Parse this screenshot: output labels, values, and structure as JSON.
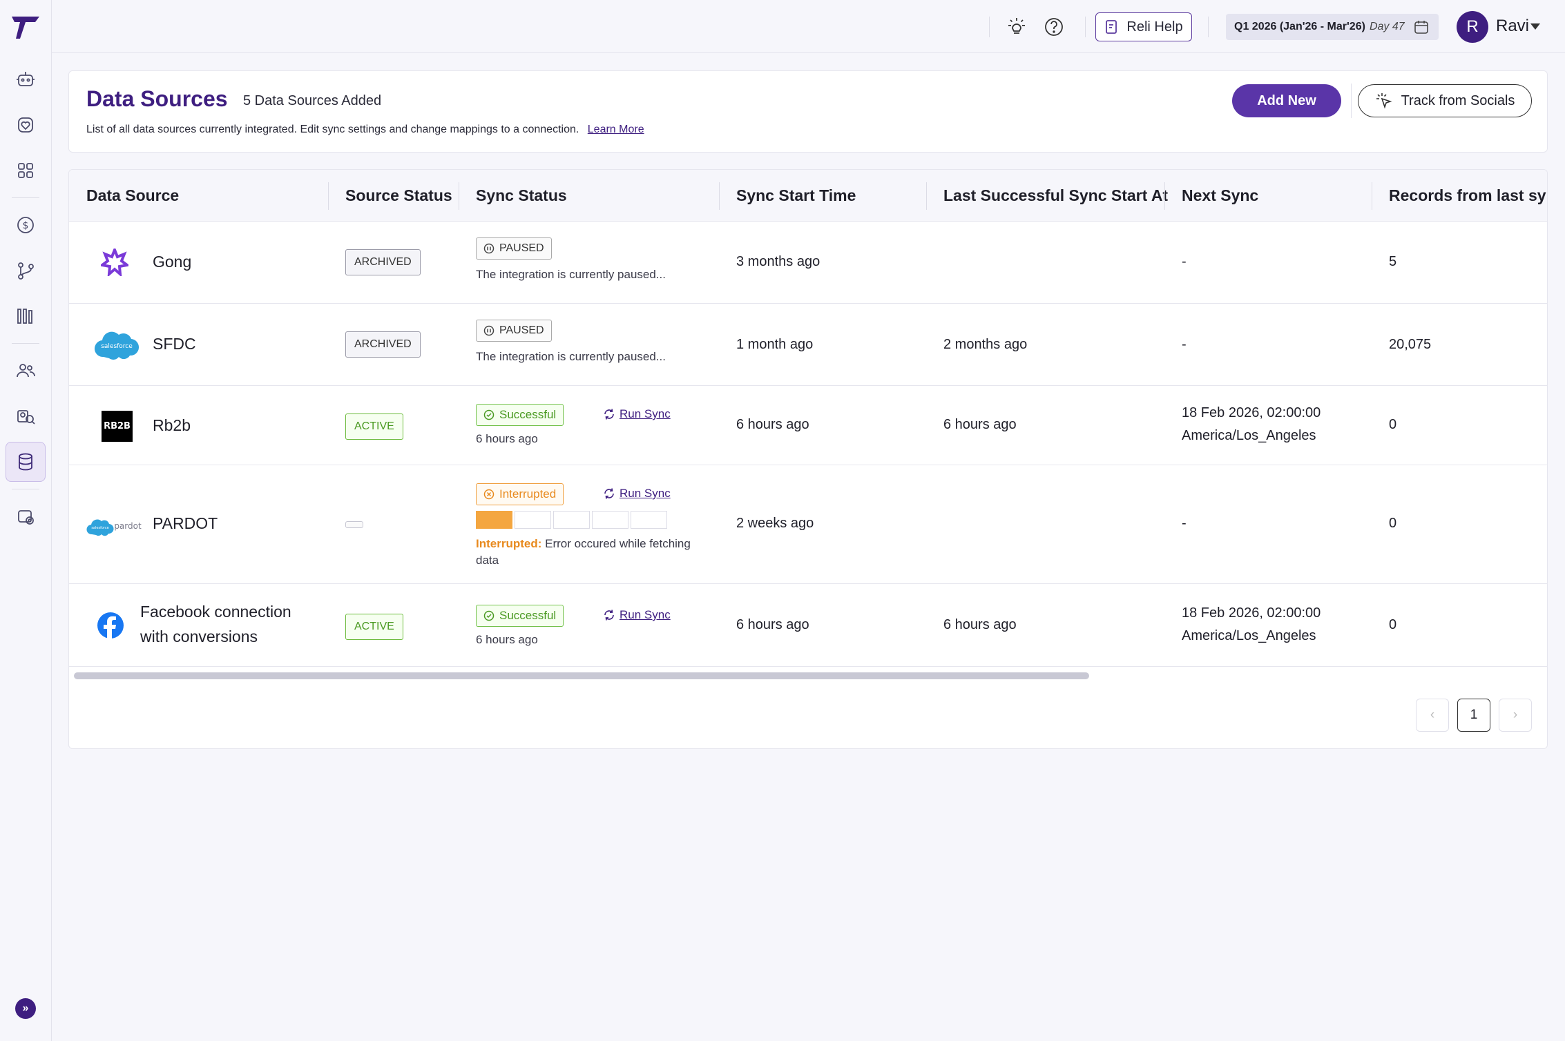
{
  "topbar": {
    "help_label": "Reli Help",
    "quarter_label": "Q1 2026 (Jan'26 - Mar'26)",
    "day_label": "Day 47",
    "avatar_initial": "R",
    "user_name": "Ravi"
  },
  "sidebar": {
    "items": [
      {
        "icon": "robot-icon"
      },
      {
        "icon": "heart-shield-icon"
      },
      {
        "icon": "grid-icon"
      },
      {
        "icon": "dollar-icon"
      },
      {
        "icon": "branch-icon"
      },
      {
        "icon": "bars-icon"
      },
      {
        "icon": "users-icon"
      },
      {
        "icon": "account-search-icon"
      },
      {
        "icon": "database-icon",
        "active": true
      },
      {
        "icon": "gear-puzzle-icon"
      }
    ]
  },
  "header": {
    "title": "Data Sources",
    "count_label": "5 Data Sources Added",
    "description": "List of all data sources currently integrated. Edit sync settings and change mappings to a connection.",
    "learn_more": "Learn More",
    "add_new": "Add New",
    "track_socials": "Track from Socials"
  },
  "table": {
    "columns": [
      "Data Source",
      "Source Status",
      "Sync Status",
      "Sync Start Time",
      "Last Successful Sync Start At",
      "Next Sync",
      "Records from last sync"
    ],
    "rows": [
      {
        "name": "Gong",
        "source_status": "ARCHIVED",
        "sync_status": "PAUSED",
        "sync_note": "The integration is currently paused...",
        "sync_start": "3 months ago",
        "last_success": "",
        "next_sync_line1": "-",
        "next_sync_line2": "",
        "records": "5"
      },
      {
        "name": "SFDC",
        "source_status": "ARCHIVED",
        "sync_status": "PAUSED",
        "sync_note": "The integration is currently paused...",
        "sync_start": "1 month ago",
        "last_success": "2 months ago",
        "next_sync_line1": "-",
        "next_sync_line2": "",
        "records": "20,075"
      },
      {
        "name": "Rb2b",
        "source_status": "ACTIVE",
        "sync_status": "Successful",
        "sync_note": "6 hours ago",
        "run_sync": "Run Sync",
        "sync_start": "6 hours ago",
        "last_success": "6 hours ago",
        "next_sync_line1": "18 Feb 2026, 02:00:00",
        "next_sync_line2": "America/Los_Angeles",
        "records": "0"
      },
      {
        "name": "PARDOT",
        "source_status": "",
        "sync_status": "Interrupted",
        "run_sync": "Run Sync",
        "progress_filled": 1,
        "progress_total": 5,
        "err_label": "Interrupted:",
        "err_text": "Error occured while fetching",
        "err_text2": "data",
        "sync_start": "2 weeks ago",
        "last_success": "",
        "next_sync_line1": "-",
        "next_sync_line2": "",
        "records": "0"
      },
      {
        "name_line1": "Facebook connection",
        "name_line2": "with conversions",
        "source_status": "ACTIVE",
        "sync_status": "Successful",
        "sync_note": "6 hours ago",
        "run_sync": "Run Sync",
        "sync_start": "6 hours ago",
        "last_success": "6 hours ago",
        "next_sync_line1": "18 Feb 2026, 02:00:00",
        "next_sync_line2": "America/Los_Angeles",
        "records": "0"
      }
    ]
  },
  "logos": {
    "salesforce_text": "salesforce",
    "pardot_text": "pardot",
    "rb2b_text": "RB2B"
  },
  "pagination": {
    "current": "1",
    "prev": "‹",
    "next": "›"
  },
  "colors": {
    "brand": "#3e1e80",
    "accent": "#5a35a8",
    "success": "#4a9a22",
    "warning": "#e88a1e"
  }
}
